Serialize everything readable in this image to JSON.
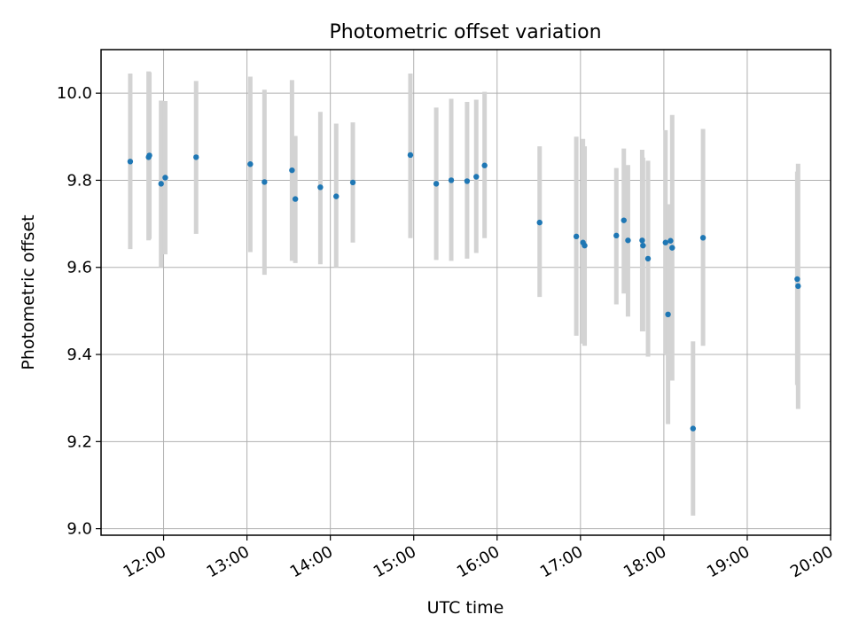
{
  "chart_data": {
    "type": "scatter",
    "title": "Photometric offset variation",
    "xlabel": "UTC time",
    "ylabel": "Photometric offset",
    "x_unit": "hours (UTC)",
    "xlim": [
      11.25,
      20.0
    ],
    "ylim": [
      8.985,
      10.1
    ],
    "grid": true,
    "x_ticks": [
      {
        "value": 12,
        "label": "12:00"
      },
      {
        "value": 13,
        "label": "13:00"
      },
      {
        "value": 14,
        "label": "14:00"
      },
      {
        "value": 15,
        "label": "15:00"
      },
      {
        "value": 16,
        "label": "16:00"
      },
      {
        "value": 17,
        "label": "17:00"
      },
      {
        "value": 18,
        "label": "18:00"
      },
      {
        "value": 19,
        "label": "19:00"
      },
      {
        "value": 20,
        "label": "20:00"
      }
    ],
    "y_ticks": [
      {
        "value": 9.0,
        "label": "9.0"
      },
      {
        "value": 9.2,
        "label": "9.2"
      },
      {
        "value": 9.4,
        "label": "9.4"
      },
      {
        "value": 9.6,
        "label": "9.6"
      },
      {
        "value": 9.8,
        "label": "9.8"
      },
      {
        "value": 10.0,
        "label": "10.0"
      }
    ],
    "colors": {
      "points": "#1f77b4",
      "errorbars": "#d3d3d3",
      "grid": "#b0b0b0"
    },
    "points": [
      {
        "x": 11.6,
        "y": 9.843,
        "lo": 9.642,
        "hi": 10.045
      },
      {
        "x": 11.82,
        "y": 9.853,
        "lo": 9.662,
        "hi": 10.05
      },
      {
        "x": 11.83,
        "y": 9.857,
        "lo": 9.665,
        "hi": 10.048
      },
      {
        "x": 11.97,
        "y": 9.792,
        "lo": 9.6,
        "hi": 9.983
      },
      {
        "x": 12.02,
        "y": 9.806,
        "lo": 9.63,
        "hi": 9.982
      },
      {
        "x": 12.39,
        "y": 9.853,
        "lo": 9.677,
        "hi": 10.028
      },
      {
        "x": 13.04,
        "y": 9.837,
        "lo": 9.635,
        "hi": 10.038
      },
      {
        "x": 13.21,
        "y": 9.796,
        "lo": 9.583,
        "hi": 10.008
      },
      {
        "x": 13.54,
        "y": 9.823,
        "lo": 9.615,
        "hi": 10.03
      },
      {
        "x": 13.58,
        "y": 9.757,
        "lo": 9.61,
        "hi": 9.902
      },
      {
        "x": 13.88,
        "y": 9.784,
        "lo": 9.607,
        "hi": 9.957
      },
      {
        "x": 14.07,
        "y": 9.763,
        "lo": 9.6,
        "hi": 9.93
      },
      {
        "x": 14.27,
        "y": 9.795,
        "lo": 9.657,
        "hi": 9.933
      },
      {
        "x": 14.96,
        "y": 9.858,
        "lo": 9.667,
        "hi": 10.045
      },
      {
        "x": 15.27,
        "y": 9.792,
        "lo": 9.617,
        "hi": 9.967
      },
      {
        "x": 15.45,
        "y": 9.8,
        "lo": 9.615,
        "hi": 9.987
      },
      {
        "x": 15.64,
        "y": 9.798,
        "lo": 9.62,
        "hi": 9.98
      },
      {
        "x": 15.75,
        "y": 9.808,
        "lo": 9.633,
        "hi": 9.985
      },
      {
        "x": 15.85,
        "y": 9.834,
        "lo": 9.667,
        "hi": 10.003
      },
      {
        "x": 16.51,
        "y": 9.703,
        "lo": 9.532,
        "hi": 9.878
      },
      {
        "x": 16.95,
        "y": 9.671,
        "lo": 9.443,
        "hi": 9.9
      },
      {
        "x": 17.03,
        "y": 9.657,
        "lo": 9.425,
        "hi": 9.895
      },
      {
        "x": 17.05,
        "y": 9.65,
        "lo": 9.42,
        "hi": 9.878
      },
      {
        "x": 17.43,
        "y": 9.673,
        "lo": 9.515,
        "hi": 9.828
      },
      {
        "x": 17.52,
        "y": 9.708,
        "lo": 9.54,
        "hi": 9.873
      },
      {
        "x": 17.57,
        "y": 9.662,
        "lo": 9.487,
        "hi": 9.835
      },
      {
        "x": 17.74,
        "y": 9.662,
        "lo": 9.453,
        "hi": 9.87
      },
      {
        "x": 17.75,
        "y": 9.65,
        "lo": 9.453,
        "hi": 9.852
      },
      {
        "x": 17.81,
        "y": 9.62,
        "lo": 9.395,
        "hi": 9.845
      },
      {
        "x": 18.02,
        "y": 9.657,
        "lo": 9.4,
        "hi": 9.915
      },
      {
        "x": 18.05,
        "y": 9.492,
        "lo": 9.24,
        "hi": 9.745
      },
      {
        "x": 18.08,
        "y": 9.661,
        "lo": 9.34,
        "hi": 9.735
      },
      {
        "x": 18.1,
        "y": 9.645,
        "lo": 9.34,
        "hi": 9.95
      },
      {
        "x": 18.35,
        "y": 9.23,
        "lo": 9.03,
        "hi": 9.43
      },
      {
        "x": 18.47,
        "y": 9.668,
        "lo": 9.42,
        "hi": 9.918
      },
      {
        "x": 19.6,
        "y": 9.573,
        "lo": 9.33,
        "hi": 9.82
      },
      {
        "x": 19.61,
        "y": 9.557,
        "lo": 9.275,
        "hi": 9.838
      }
    ]
  }
}
